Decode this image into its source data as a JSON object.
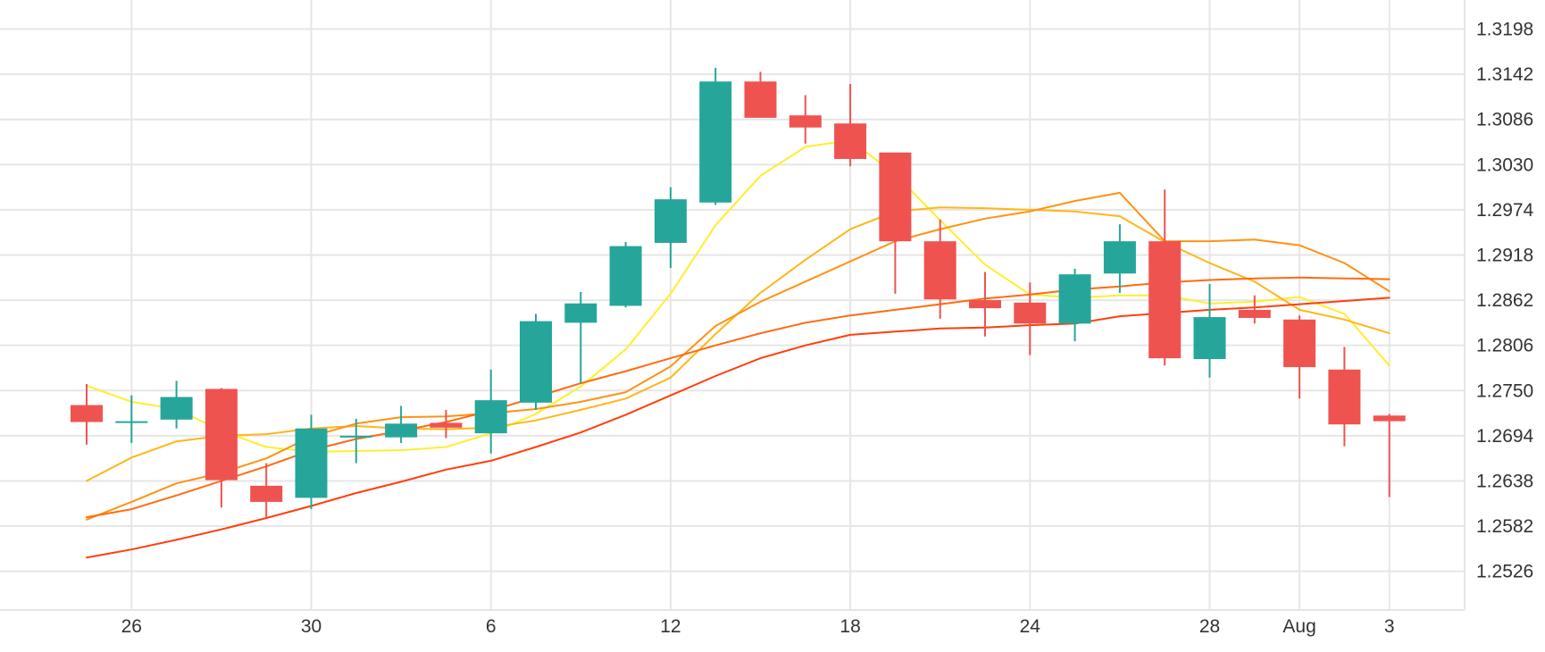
{
  "chart_data": {
    "type": "candlestick",
    "title": "",
    "xlabel": "",
    "ylabel": "",
    "ylim": [
      1.2478,
      1.3234
    ],
    "grid": true,
    "y_ticks": [
      "1.3198",
      "1.3142",
      "1.3086",
      "1.3030",
      "1.2974",
      "1.2918",
      "1.2862",
      "1.2806",
      "1.2750",
      "1.2694",
      "1.2638",
      "1.2582",
      "1.2526"
    ],
    "x_ticks": [
      {
        "label": "26",
        "index": 1
      },
      {
        "label": "30",
        "index": 5
      },
      {
        "label": "6",
        "index": 9
      },
      {
        "label": "12",
        "index": 13
      },
      {
        "label": "18",
        "index": 17
      },
      {
        "label": "24",
        "index": 21
      },
      {
        "label": "28",
        "index": 25
      },
      {
        "label": "Aug",
        "index": 27
      },
      {
        "label": "3",
        "index": 29
      }
    ],
    "candles": [
      {
        "open": 1.2732,
        "high": 1.2758,
        "low": 1.2683,
        "close": 1.2711
      },
      {
        "open": 1.2711,
        "high": 1.2744,
        "low": 1.2685,
        "close": 1.2712
      },
      {
        "open": 1.2714,
        "high": 1.2762,
        "low": 1.2703,
        "close": 1.2742
      },
      {
        "open": 1.2752,
        "high": 1.2753,
        "low": 1.2605,
        "close": 1.2639
      },
      {
        "open": 1.2632,
        "high": 1.266,
        "low": 1.2593,
        "close": 1.2612
      },
      {
        "open": 1.2617,
        "high": 1.272,
        "low": 1.2603,
        "close": 1.2703
      },
      {
        "open": 1.2692,
        "high": 1.2715,
        "low": 1.266,
        "close": 1.2694
      },
      {
        "open": 1.2692,
        "high": 1.2731,
        "low": 1.2685,
        "close": 1.2709
      },
      {
        "open": 1.271,
        "high": 1.2726,
        "low": 1.2691,
        "close": 1.2704
      },
      {
        "open": 1.2697,
        "high": 1.2776,
        "low": 1.2672,
        "close": 1.2738
      },
      {
        "open": 1.2735,
        "high": 1.2845,
        "low": 1.2726,
        "close": 1.2836
      },
      {
        "open": 1.2834,
        "high": 1.2872,
        "low": 1.2759,
        "close": 1.2858
      },
      {
        "open": 1.2855,
        "high": 1.2934,
        "low": 1.2853,
        "close": 1.2929
      },
      {
        "open": 1.2933,
        "high": 1.3002,
        "low": 1.2902,
        "close": 1.2987
      },
      {
        "open": 1.2983,
        "high": 1.315,
        "low": 1.298,
        "close": 1.3133
      },
      {
        "open": 1.3133,
        "high": 1.3145,
        "low": 1.3091,
        "close": 1.3088
      },
      {
        "open": 1.3091,
        "high": 1.3116,
        "low": 1.3056,
        "close": 1.3076
      },
      {
        "open": 1.3081,
        "high": 1.313,
        "low": 1.3028,
        "close": 1.3037
      },
      {
        "open": 1.3045,
        "high": 1.3044,
        "low": 1.287,
        "close": 1.2935
      },
      {
        "open": 1.2935,
        "high": 1.2962,
        "low": 1.2839,
        "close": 1.2863
      },
      {
        "open": 1.2862,
        "high": 1.2897,
        "low": 1.2817,
        "close": 1.2852
      },
      {
        "open": 1.2859,
        "high": 1.2884,
        "low": 1.2794,
        "close": 1.2833
      },
      {
        "open": 1.2833,
        "high": 1.2901,
        "low": 1.2811,
        "close": 1.2894
      },
      {
        "open": 1.2895,
        "high": 1.2956,
        "low": 1.2871,
        "close": 1.2935
      },
      {
        "open": 1.2935,
        "high": 1.2999,
        "low": 1.2781,
        "close": 1.279
      },
      {
        "open": 1.2789,
        "high": 1.2882,
        "low": 1.2766,
        "close": 1.2841
      },
      {
        "open": 1.285,
        "high": 1.2868,
        "low": 1.2833,
        "close": 1.284
      },
      {
        "open": 1.2838,
        "high": 1.2843,
        "low": 1.274,
        "close": 1.2779
      },
      {
        "open": 1.2776,
        "high": 1.2804,
        "low": 1.2681,
        "close": 1.2708
      },
      {
        "open": 1.2719,
        "high": 1.2721,
        "low": 1.2618,
        "close": 1.2712
      }
    ],
    "moving_averages": [
      {
        "color": "#ffee2e",
        "values": [
          1.2756,
          1.2736,
          1.2727,
          1.27,
          1.268,
          1.2674,
          1.2675,
          1.2676,
          1.268,
          1.2697,
          1.2721,
          1.2755,
          1.2801,
          1.287,
          1.2955,
          1.3016,
          1.3052,
          1.306,
          1.3018,
          1.2961,
          1.2906,
          1.2869,
          1.2865,
          1.2868,
          1.2868,
          1.2858,
          1.286,
          1.2866,
          1.2845,
          1.2781
        ]
      },
      {
        "color": "#ffb61a",
        "values": [
          1.2638,
          1.2667,
          1.2687,
          1.2694,
          1.2696,
          1.2703,
          1.2706,
          1.2703,
          1.2702,
          1.2704,
          1.2713,
          1.2726,
          1.274,
          1.2766,
          1.282,
          1.2871,
          1.2912,
          1.295,
          1.2972,
          1.2977,
          1.2976,
          1.2974,
          1.2972,
          1.2966,
          1.2934,
          1.2908,
          1.2885,
          1.285,
          1.2838,
          1.2821
        ]
      },
      {
        "color": "#ff9212",
        "values": [
          1.259,
          1.2612,
          1.2635,
          1.2648,
          1.2666,
          1.2693,
          1.2709,
          1.2717,
          1.2718,
          1.2722,
          1.2727,
          1.2736,
          1.2748,
          1.278,
          1.283,
          1.286,
          1.2885,
          1.291,
          1.2935,
          1.295,
          1.2963,
          1.2972,
          1.2985,
          1.2995,
          1.2935,
          1.2935,
          1.2937,
          1.293,
          1.2908,
          1.2873
        ]
      },
      {
        "color": "#ff6b10",
        "values": [
          1.2593,
          1.2603,
          1.262,
          1.2638,
          1.2656,
          1.2676,
          1.269,
          1.27,
          1.2711,
          1.2725,
          1.2742,
          1.2759,
          1.2774,
          1.279,
          1.2806,
          1.2821,
          1.2834,
          1.2843,
          1.285,
          1.2857,
          1.2864,
          1.2869,
          1.2875,
          1.2879,
          1.2884,
          1.2887,
          1.2889,
          1.289,
          1.2889,
          1.2888
        ]
      },
      {
        "color": "#ff3f0a",
        "values": [
          1.2543,
          1.2553,
          1.2565,
          1.2578,
          1.2592,
          1.2607,
          1.2623,
          1.2637,
          1.2652,
          1.2663,
          1.268,
          1.2698,
          1.272,
          1.2744,
          1.2768,
          1.279,
          1.2806,
          1.2819,
          1.2823,
          1.2827,
          1.2828,
          1.2831,
          1.2833,
          1.2842,
          1.2846,
          1.285,
          1.2853,
          1.2857,
          1.2861,
          1.2865
        ]
      }
    ],
    "colors": {
      "up": "#26a69a",
      "down": "#ef5350",
      "grid": "#e6e6e6",
      "text": "#333333"
    }
  }
}
